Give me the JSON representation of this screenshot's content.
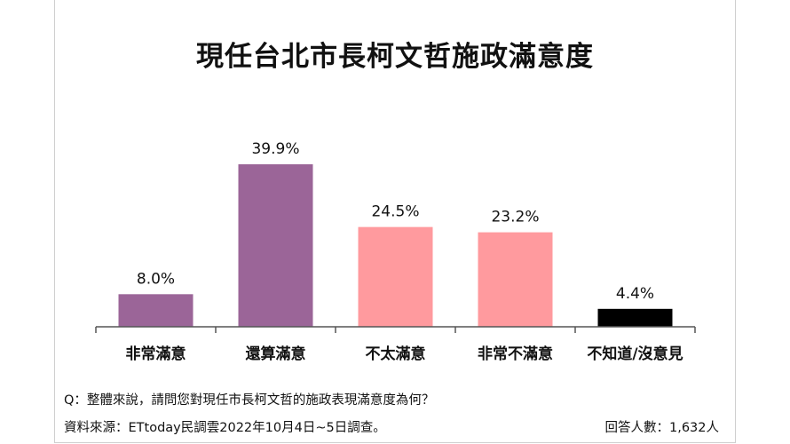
{
  "chart_data": {
    "type": "bar",
    "title": "現任台北市長柯文哲施政滿意度",
    "categories": [
      "非常滿意",
      "還算滿意",
      "不太滿意",
      "非常不滿意",
      "不知道/沒意見"
    ],
    "values": [
      8.0,
      39.9,
      24.5,
      23.2,
      4.4
    ],
    "value_labels": [
      "8.0%",
      "39.9%",
      "24.5%",
      "23.2%",
      "4.4%"
    ],
    "colors": [
      "#9b6598",
      "#9b6598",
      "#ff9a9e",
      "#ff9a9e",
      "#000000"
    ],
    "ylim": [
      0,
      39.9
    ],
    "grid": false,
    "legend": "none"
  },
  "footer": {
    "question": "Q：整體來說，請問您對現任市長柯文哲的施政表現滿意度為何？",
    "source": "資料來源：ETtoday民調雲2022年10月4日~5日調查。",
    "respondents": "回答人數：1,632人"
  }
}
